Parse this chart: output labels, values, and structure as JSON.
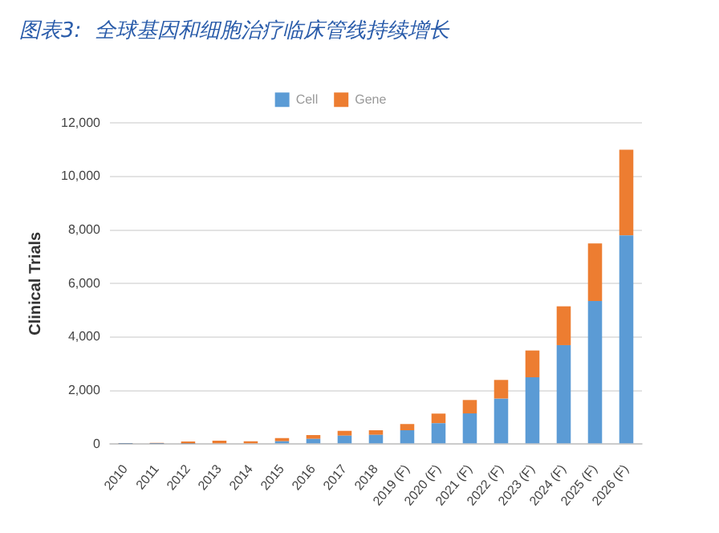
{
  "chart_data": {
    "type": "bar",
    "title": "图表3:  全球基因和细胞治疗临床管线持续增长",
    "ylabel": "Clinical Trials",
    "categories": [
      "2010",
      "2011",
      "2012",
      "2013",
      "2014",
      "2015",
      "2016",
      "2017",
      "2018",
      "2019 (F)",
      "2020 (F)",
      "2021 (F)",
      "2022 (F)",
      "2023 (F)",
      "2024 (F)",
      "2025 (F)",
      "2026 (F)"
    ],
    "stacked": true,
    "series": [
      {
        "name": "Cell",
        "color": "#5b9bd5",
        "values": [
          10,
          10,
          20,
          30,
          null,
          110,
          200,
          320,
          350,
          520,
          780,
          1150,
          1700,
          2500,
          3700,
          5350,
          7800
        ]
      },
      {
        "name": "Gene",
        "color": "#ed7d31",
        "values": [
          30,
          40,
          80,
          100,
          110,
          120,
          140,
          180,
          170,
          230,
          360,
          500,
          700,
          1000,
          1450,
          2150,
          3200
        ]
      }
    ],
    "ylim": [
      0,
      12000
    ],
    "yticks": [
      {
        "value": 0,
        "label": "0"
      },
      {
        "value": 2000,
        "label": "2,000"
      },
      {
        "value": 4000,
        "label": "4,000"
      },
      {
        "value": 6000,
        "label": "6,000"
      },
      {
        "value": 8000,
        "label": "8,000"
      },
      {
        "value": 10000,
        "label": "10,000"
      },
      {
        "value": 12000,
        "label": "12,000"
      }
    ],
    "grid": "y",
    "legend": "top"
  }
}
